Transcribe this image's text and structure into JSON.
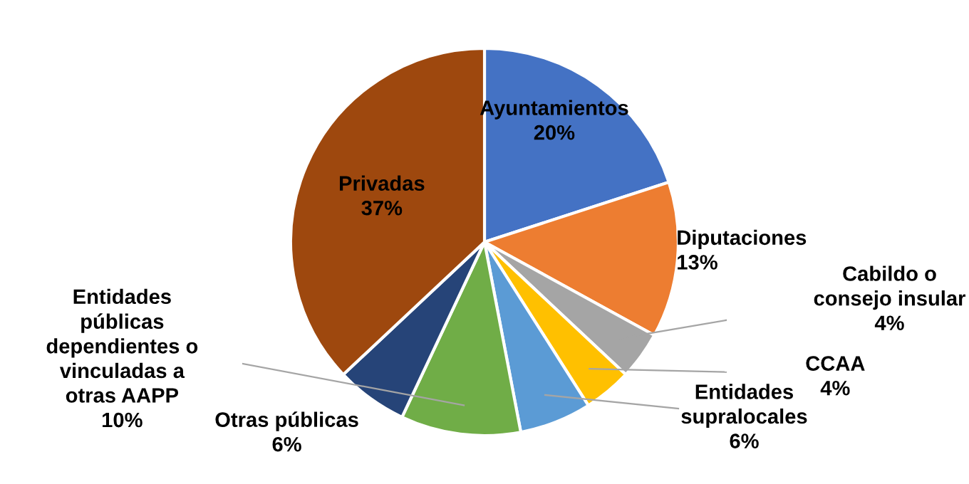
{
  "chart_data": {
    "type": "pie",
    "categories": [
      "Ayuntamientos",
      "Diputaciones",
      "Cabildo o\nconsejo insular",
      "CCAA",
      "Entidades\nsupralocales",
      "Entidades\npúblicas\ndependientes o\nvinculadas a\notras AAPP",
      "Otras públicas",
      "Privadas"
    ],
    "values": [
      20,
      13,
      4,
      4,
      6,
      10,
      6,
      37
    ],
    "value_labels": [
      "20%",
      "13%",
      "4%",
      "4%",
      "6%",
      "10%",
      "6%",
      "37%"
    ],
    "colors": [
      "#4472c4",
      "#ed7d31",
      "#a5a5a5",
      "#ffc000",
      "#5b9bd5",
      "#70ad47",
      "#264478",
      "#9e480e"
    ]
  }
}
